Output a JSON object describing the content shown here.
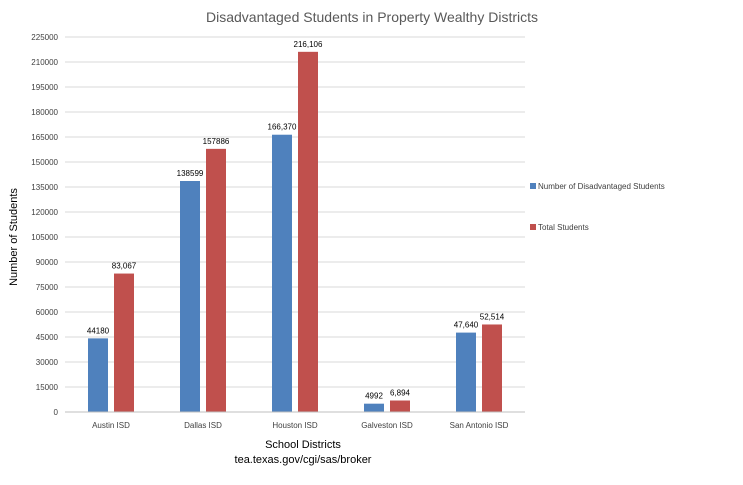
{
  "chart_data": {
    "type": "bar",
    "title": "Disadvantaged Students in Property Wealthy Districts",
    "xlabel": "School Districts",
    "xlabel_source": "tea.texas.gov/cgi/sas/broker",
    "ylabel": "Number of Students",
    "ylim": [
      0,
      225000
    ],
    "yticks": [
      "0",
      "15000",
      "30000",
      "45000",
      "60000",
      "75000",
      "90000",
      "105000",
      "120000",
      "135000",
      "150000",
      "165000",
      "180000",
      "195000",
      "210000",
      "225000"
    ],
    "categories": [
      "Austin ISD",
      "Dallas ISD",
      "Houston ISD",
      "Galveston ISD",
      "San Antonio ISD"
    ],
    "series": [
      {
        "name": "Number of Disadvantaged Students",
        "color": "#4f81bd",
        "values": [
          44180,
          138599,
          166370,
          4992,
          47640
        ],
        "labels": [
          "44180",
          "138599",
          "166,370",
          "4992",
          "47,640"
        ]
      },
      {
        "name": "Total Students",
        "color": "#c0504d",
        "values": [
          83067,
          157886,
          216106,
          6894,
          52514
        ],
        "labels": [
          "83,067",
          "157886",
          "216,106",
          "6,894",
          "52,514"
        ]
      }
    ],
    "grid": true,
    "legend_position": "right"
  }
}
